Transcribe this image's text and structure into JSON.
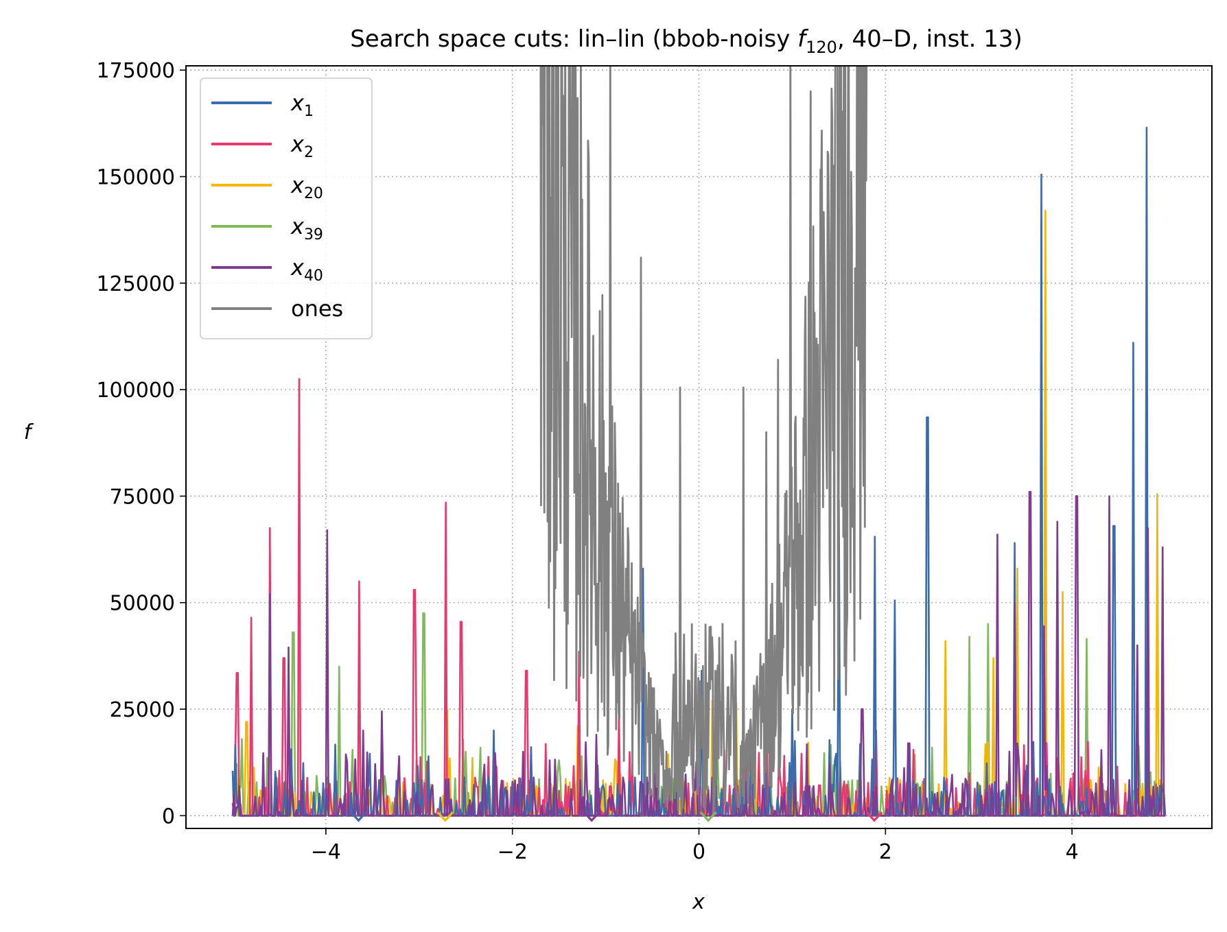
{
  "chart_data": {
    "type": "line",
    "title_prefix": "Search space cuts: lin–lin (bbob-noisy ",
    "title_f": "f",
    "title_sub": "120",
    "title_suffix": ", 40–D, inst. 13)",
    "xlabel": "x",
    "ylabel": "f",
    "xlim": [
      -5.5,
      5.5
    ],
    "ylim": [
      -3000,
      176000
    ],
    "x_ticks": [
      -4,
      -2,
      0,
      2,
      4
    ],
    "x_tick_labels": [
      "−4",
      "−2",
      "0",
      "2",
      "4"
    ],
    "y_ticks": [
      0,
      25000,
      50000,
      75000,
      100000,
      125000,
      150000,
      175000
    ],
    "y_tick_labels": [
      "0",
      "25000",
      "50000",
      "75000",
      "100000",
      "125000",
      "150000",
      "175000"
    ],
    "grid": true,
    "legend_position": "upper-left",
    "series": [
      {
        "name": "x1",
        "base": "x",
        "sub": "1",
        "color": "#3a6bad",
        "marker_x": -3.65,
        "peaks": [
          [
            -4.95,
            3000
          ],
          [
            -2.2,
            20000
          ],
          [
            -0.6,
            58000
          ],
          [
            0.03,
            34000
          ],
          [
            0.55,
            15000
          ],
          [
            1.0,
            25000
          ],
          [
            1.5,
            74000
          ],
          [
            1.88,
            65500
          ],
          [
            2.1,
            50500
          ],
          [
            2.45,
            93500
          ],
          [
            3.38,
            64000
          ],
          [
            3.67,
            150500
          ],
          [
            4.45,
            68000
          ],
          [
            4.65,
            111000
          ],
          [
            4.8,
            161500
          ],
          [
            4.95,
            7000
          ]
        ]
      },
      {
        "name": "x2",
        "base": "x",
        "sub": "2",
        "color": "#e8396f",
        "marker_x": 1.88,
        "peaks": [
          [
            -4.95,
            33500
          ],
          [
            -4.8,
            46500
          ],
          [
            -4.6,
            67500
          ],
          [
            -4.45,
            37000
          ],
          [
            -4.28,
            102500
          ],
          [
            -3.65,
            55000
          ],
          [
            -3.05,
            53000
          ],
          [
            -2.72,
            73500
          ],
          [
            -2.55,
            45500
          ],
          [
            -1.85,
            34000
          ],
          [
            -1.28,
            38500
          ],
          [
            -0.85,
            24000
          ],
          [
            0.5,
            15000
          ],
          [
            1.9,
            20000
          ],
          [
            2.9,
            10000
          ]
        ]
      },
      {
        "name": "x20",
        "base": "x",
        "sub": "20",
        "color": "#f4b800",
        "marker_x": -2.72,
        "peaks": [
          [
            -4.85,
            22000
          ],
          [
            -4.5,
            10000
          ],
          [
            -2.7,
            25000
          ],
          [
            -1.3,
            21000
          ],
          [
            -0.45,
            15000
          ],
          [
            0.15,
            27000
          ],
          [
            0.4,
            26500
          ],
          [
            0.6,
            20000
          ],
          [
            2.45,
            90000
          ],
          [
            2.65,
            41000
          ],
          [
            3.15,
            37000
          ],
          [
            3.42,
            58000
          ],
          [
            3.72,
            142000
          ],
          [
            3.9,
            52500
          ],
          [
            4.92,
            75500
          ]
        ]
      },
      {
        "name": "x39",
        "base": "x",
        "sub": "39",
        "color": "#7fba5d",
        "marker_x": 0.1,
        "peaks": [
          [
            -4.9,
            18000
          ],
          [
            -4.35,
            43000
          ],
          [
            -3.85,
            35000
          ],
          [
            -2.95,
            47500
          ],
          [
            -2.5,
            15000
          ],
          [
            -1.1,
            12000
          ],
          [
            0.0,
            10000
          ],
          [
            1.4,
            6000
          ],
          [
            2.5,
            16000
          ],
          [
            2.9,
            42000
          ],
          [
            3.1,
            45000
          ],
          [
            3.7,
            39000
          ],
          [
            4.15,
            41500
          ],
          [
            4.9,
            7000
          ]
        ]
      },
      {
        "name": "x40",
        "base": "x",
        "sub": "40",
        "color": "#7e3b91",
        "marker_x": -1.15,
        "peaks": [
          [
            -4.95,
            2000
          ],
          [
            -4.6,
            52000
          ],
          [
            -4.4,
            39500
          ],
          [
            -3.98,
            67000
          ],
          [
            -3.6,
            20000
          ],
          [
            -3.4,
            24500
          ],
          [
            -2.3,
            12000
          ],
          [
            -1.6,
            13000
          ],
          [
            -1.1,
            19000
          ],
          [
            -0.55,
            9000
          ],
          [
            0.5,
            8000
          ],
          [
            1.4,
            12000
          ],
          [
            1.75,
            25000
          ],
          [
            2.25,
            17000
          ],
          [
            3.2,
            66000
          ],
          [
            3.38,
            50000
          ],
          [
            3.55,
            76000
          ],
          [
            3.7,
            44500
          ],
          [
            3.85,
            69000
          ],
          [
            4.05,
            75000
          ],
          [
            4.4,
            75000
          ],
          [
            4.7,
            40000
          ],
          [
            4.82,
            67500
          ],
          [
            4.97,
            63000
          ]
        ]
      },
      {
        "name": "ones",
        "base": "ones",
        "sub": "",
        "color": "#808080",
        "marker_x": null,
        "segments": [
          [
            -1.6,
            180000
          ],
          [
            -1.45,
            125000
          ],
          [
            -1.32,
            180000
          ],
          [
            -1.2,
            75000
          ],
          [
            -1.05,
            62000
          ],
          [
            -0.95,
            180000
          ],
          [
            -0.8,
            50000
          ],
          [
            -0.62,
            131000
          ],
          [
            -0.5,
            30000
          ],
          [
            -0.35,
            15000
          ],
          [
            -0.2,
            100500
          ],
          [
            -0.1,
            20000
          ],
          [
            0.0,
            7000
          ],
          [
            0.25,
            45000
          ],
          [
            0.48,
            100500
          ],
          [
            0.72,
            90000
          ],
          [
            0.85,
            107000
          ],
          [
            0.98,
            180000
          ],
          [
            1.2,
            170000
          ],
          [
            1.35,
            112000
          ],
          [
            1.6,
            150000
          ],
          [
            1.75,
            171000
          ]
        ]
      }
    ]
  }
}
